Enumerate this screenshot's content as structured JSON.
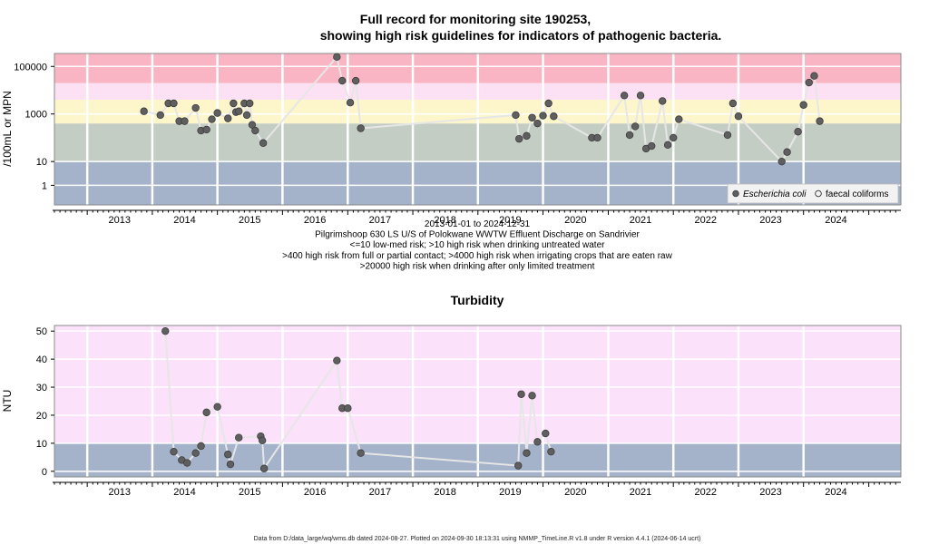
{
  "chart_data": [
    {
      "type": "scatter",
      "title": "Full record for monitoring site 190253,",
      "subtitle": "showing high risk guidelines for indicators of pathogenic bacteria.",
      "ylabel": "/100mL or MPN",
      "yscale": "log",
      "ylim": [
        0.15,
        350000
      ],
      "xlim": [
        "2012-07-01",
        "2025-06-30"
      ],
      "x_tick_labels": [
        "2013",
        "2014",
        "2015",
        "2016",
        "2017",
        "2018",
        "2019",
        "2020",
        "2021",
        "2022",
        "2023",
        "2024"
      ],
      "y_tick_labels": [
        "100000",
        "1000",
        "10",
        "1"
      ],
      "y_ticks": [
        100000,
        1000,
        10,
        1
      ],
      "risk_bands": [
        {
          "from": 0.15,
          "to": 10,
          "color": "#a4b2ca"
        },
        {
          "from": 10,
          "to": 400,
          "color": "#c4cdc4"
        },
        {
          "from": 400,
          "to": 4000,
          "color": "#fdf6cb"
        },
        {
          "from": 4000,
          "to": 20000,
          "color": "#fbe1f3"
        },
        {
          "from": 20000,
          "to": 350000,
          "color": "#f9b5c3"
        }
      ],
      "caption": [
        "2013-01-01 to 2024-12-31",
        "Pilgrimshoop 630 LS U/S of Polokwane WWTW Effluent Discharge on Sandrivier",
        "<=10 low-med risk; >10 high risk when drinking untreated water",
        ">400 high risk from full or partial contact; >4000 high risk when irrigating crops that are eaten raw",
        ">20000 high risk when drinking after only limited treatment"
      ],
      "legend": {
        "position": "bottom-right",
        "entries": [
          "Escherichia coli",
          "faecal coliforms"
        ]
      },
      "series": [
        {
          "name": "Escherichia coli",
          "points": [
            [
              "2013-11-15",
              1300
            ],
            [
              "2014-02-15",
              900
            ],
            [
              "2014-04-01",
              2800
            ],
            [
              "2014-05-01",
              2800
            ],
            [
              "2014-06-01",
              500
            ],
            [
              "2014-07-01",
              500
            ],
            [
              "2014-09-01",
              1800
            ],
            [
              "2014-10-01",
              200
            ],
            [
              "2014-11-01",
              220
            ],
            [
              "2014-12-01",
              600
            ],
            [
              "2015-01-01",
              1100
            ],
            [
              "2015-03-01",
              650
            ],
            [
              "2015-04-01",
              2800
            ],
            [
              "2015-04-15",
              1200
            ],
            [
              "2015-05-01",
              1300
            ],
            [
              "2015-06-01",
              2800
            ],
            [
              "2015-06-15",
              900
            ],
            [
              "2015-07-01",
              2800
            ],
            [
              "2015-07-15",
              350
            ],
            [
              "2015-08-01",
              200
            ],
            [
              "2015-09-15",
              60
            ],
            [
              "2016-11-01",
              250000
            ],
            [
              "2016-12-01",
              25000
            ],
            [
              "2017-01-15",
              3000
            ],
            [
              "2017-02-15",
              25000
            ],
            [
              "2017-03-15",
              250
            ],
            [
              "2019-08-01",
              900
            ],
            [
              "2019-08-20",
              90
            ],
            [
              "2019-10-01",
              120
            ],
            [
              "2019-11-01",
              700
            ],
            [
              "2019-12-01",
              400
            ],
            [
              "2020-01-01",
              850
            ],
            [
              "2020-02-01",
              2800
            ],
            [
              "2020-03-01",
              800
            ],
            [
              "2020-10-01",
              100
            ],
            [
              "2020-11-01",
              100
            ],
            [
              "2021-04-01",
              6000
            ],
            [
              "2021-05-01",
              130
            ],
            [
              "2021-06-01",
              300
            ],
            [
              "2021-07-01",
              6000
            ],
            [
              "2021-08-01",
              35
            ],
            [
              "2021-09-01",
              45
            ],
            [
              "2021-11-01",
              3500
            ],
            [
              "2021-12-01",
              50
            ],
            [
              "2022-01-01",
              100
            ],
            [
              "2022-02-01",
              600
            ],
            [
              "2022-11-01",
              130
            ],
            [
              "2022-12-01",
              2800
            ],
            [
              "2023-01-01",
              800
            ],
            [
              "2023-09-01",
              10
            ],
            [
              "2023-10-01",
              25
            ],
            [
              "2023-12-01",
              180
            ],
            [
              "2024-01-01",
              2400
            ],
            [
              "2024-02-01",
              21000
            ],
            [
              "2024-03-01",
              40000
            ],
            [
              "2024-04-01",
              500
            ]
          ]
        },
        {
          "name": "faecal coliforms",
          "points": []
        }
      ]
    },
    {
      "type": "scatter",
      "title": "Turbidity",
      "ylabel": "NTU",
      "ylim": [
        -2,
        52
      ],
      "xlim": [
        "2012-07-01",
        "2025-06-30"
      ],
      "x_tick_labels": [
        "2013",
        "2014",
        "2015",
        "2016",
        "2017",
        "2018",
        "2019",
        "2020",
        "2021",
        "2022",
        "2023",
        "2024"
      ],
      "y_tick_labels": [
        "50",
        "40",
        "30",
        "20",
        "10",
        "0"
      ],
      "y_ticks": [
        50,
        40,
        30,
        20,
        10,
        0
      ],
      "risk_bands": [
        {
          "from": -2,
          "to": 10,
          "color": "#a4b2ca"
        },
        {
          "from": 10,
          "to": 52,
          "color": "#fbe1f9"
        }
      ],
      "series": [
        {
          "points": [
            [
              "2014-03-15",
              50
            ],
            [
              "2014-05-01",
              7
            ],
            [
              "2014-06-15",
              4
            ],
            [
              "2014-07-15",
              3
            ],
            [
              "2014-09-01",
              6.5
            ],
            [
              "2014-10-01",
              9
            ],
            [
              "2014-11-01",
              21
            ],
            [
              "2015-01-01",
              23
            ],
            [
              "2015-03-01",
              6
            ],
            [
              "2015-03-15",
              2.5
            ],
            [
              "2015-05-01",
              12
            ],
            [
              "2015-09-01",
              12.5
            ],
            [
              "2015-09-10",
              11
            ],
            [
              "2015-09-20",
              1
            ],
            [
              "2016-11-01",
              39.5
            ],
            [
              "2016-12-01",
              22.5
            ],
            [
              "2017-01-01",
              22.5
            ],
            [
              "2017-03-15",
              6.5
            ],
            [
              "2019-08-15",
              2
            ],
            [
              "2019-09-01",
              27.5
            ],
            [
              "2019-10-01",
              6.5
            ],
            [
              "2019-11-01",
              27
            ],
            [
              "2019-12-01",
              10.5
            ],
            [
              "2020-01-15",
              13.5
            ],
            [
              "2020-02-15",
              7
            ]
          ]
        }
      ]
    }
  ],
  "footer": "Data from D:/data_large/wq/wms.db dated 2024-08-27. Plotted on 2024-09-30 18:13:31 using NMMP_TimeLine.R v1.8 under R version 4.4.1 (2024-06-14 ucrt)"
}
